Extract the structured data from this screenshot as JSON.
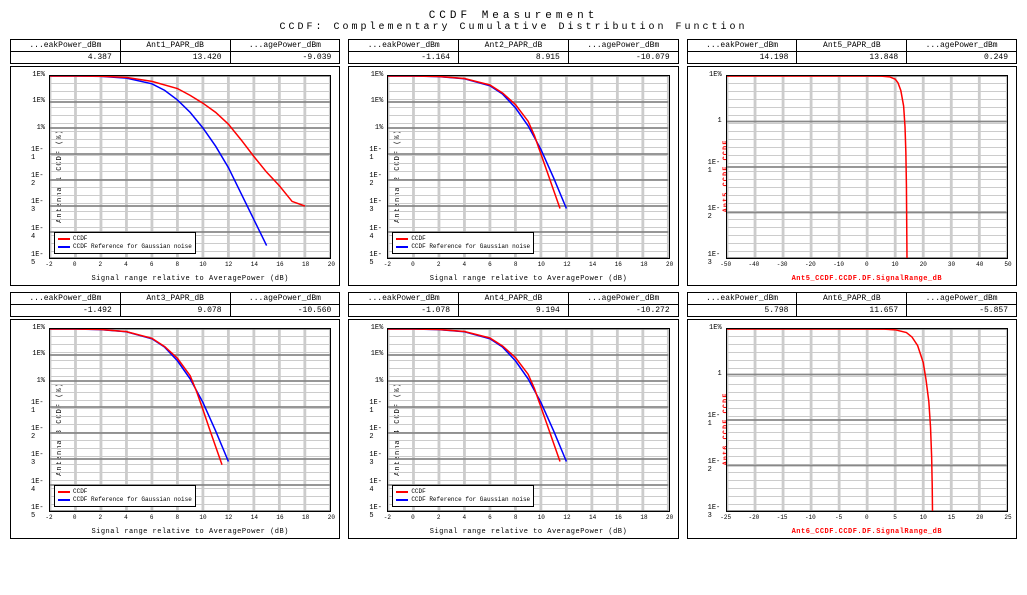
{
  "title1": "CCDF Measurement",
  "title2": "CCDF: Complementary Cumulative Distribution Function",
  "header_labels": [
    "...eakPower_dBm",
    "PAPR_dB",
    "...agePower_dBm"
  ],
  "ylim": [
    1e-05,
    100
  ],
  "ytick_labels": [
    "1E%",
    "1E%",
    "1%",
    "1E-1",
    "1E-2",
    "1E-3",
    "1E-4",
    "1E-5"
  ],
  "ytick_labels_short": [
    "1E%",
    "1",
    "1E-1",
    "1E-2",
    "1E-3"
  ],
  "xlim_std": [
    -2,
    20
  ],
  "xticks_std": [
    -2,
    0,
    2,
    4,
    6,
    8,
    10,
    12,
    14,
    16,
    18,
    20
  ],
  "xlim_red": [
    -50,
    50
  ],
  "xticks_red": [
    -50,
    -40,
    -30,
    -20,
    -10,
    0,
    10,
    20,
    30,
    40,
    50
  ],
  "xlim_red2": [
    -25,
    25
  ],
  "xticks_red2": [
    -25,
    -20,
    -15,
    -10,
    -5,
    0,
    5,
    10,
    15,
    20,
    25
  ],
  "colors": {
    "ccdf": "#ff0000",
    "gauss": "#0000ff",
    "grid": "#cccccc",
    "border": "#000000",
    "bg": "#ffffff"
  },
  "legend": {
    "ccdf": "CCDF",
    "gauss": "CCDF Reference for Gaussian noise"
  },
  "panels": [
    {
      "id": "ant1",
      "papr_label": "Ant1_PAPR_dB",
      "vals": [
        "4.387",
        "13.420",
        "-9.039"
      ],
      "ylabel": "Antenna 1 CCDF (%)",
      "xlabel": "Signal range relative to AveragePower (dB)",
      "style": "std",
      "has_ref": true,
      "ccdf": [
        [
          -2,
          100
        ],
        [
          0,
          100
        ],
        [
          2,
          98
        ],
        [
          4,
          88
        ],
        [
          6,
          62
        ],
        [
          8,
          33
        ],
        [
          9,
          18
        ],
        [
          10,
          9
        ],
        [
          11,
          4
        ],
        [
          12,
          1.4
        ],
        [
          13,
          0.35
        ],
        [
          14,
          0.08
        ],
        [
          15,
          0.02
        ],
        [
          16,
          0.006
        ],
        [
          17,
          0.0015
        ],
        [
          18,
          0.001
        ]
      ],
      "gauss": [
        [
          -2,
          100
        ],
        [
          0,
          100
        ],
        [
          2,
          97
        ],
        [
          4,
          83
        ],
        [
          6,
          50
        ],
        [
          7,
          28
        ],
        [
          8,
          12
        ],
        [
          9,
          4
        ],
        [
          10,
          1
        ],
        [
          11,
          0.2
        ],
        [
          12,
          0.03
        ],
        [
          13,
          0.003
        ],
        [
          14,
          0.0003
        ],
        [
          15,
          3e-05
        ]
      ]
    },
    {
      "id": "ant2",
      "papr_label": "Ant2_PAPR_dB",
      "vals": [
        "-1.164",
        "8.915",
        "-10.079"
      ],
      "ylabel": "Antenna 2 CCDF (%)",
      "xlabel": "Signal range relative to AveragePower (dB)",
      "style": "std",
      "has_ref": true,
      "ccdf": [
        [
          -2,
          100
        ],
        [
          0,
          100
        ],
        [
          2,
          96
        ],
        [
          4,
          80
        ],
        [
          6,
          45
        ],
        [
          7,
          22
        ],
        [
          8,
          8
        ],
        [
          9,
          1.8
        ],
        [
          9.5,
          0.5
        ],
        [
          10,
          0.1
        ],
        [
          10.5,
          0.02
        ],
        [
          11,
          0.004
        ],
        [
          11.5,
          0.0008
        ]
      ],
      "gauss": [
        [
          -2,
          100
        ],
        [
          0,
          100
        ],
        [
          2,
          95
        ],
        [
          4,
          78
        ],
        [
          6,
          42
        ],
        [
          7,
          20
        ],
        [
          8,
          6
        ],
        [
          9,
          1.2
        ],
        [
          10,
          0.15
        ],
        [
          11,
          0.012
        ],
        [
          12,
          0.0008
        ]
      ]
    },
    {
      "id": "ant5",
      "papr_label": "Ant5_PAPR_dB",
      "vals": [
        "14.198",
        "13.848",
        "0.249"
      ],
      "ylabel": "Ant5_CCDF.CCDF",
      "xlabel": "Ant5_CCDF.CCDF.DF.SignalRange_dB",
      "style": "red",
      "has_ref": false,
      "ccdf": [
        [
          -50,
          100
        ],
        [
          -30,
          100
        ],
        [
          -10,
          100
        ],
        [
          0,
          100
        ],
        [
          5,
          99
        ],
        [
          8,
          95
        ],
        [
          10,
          82
        ],
        [
          11,
          65
        ],
        [
          12,
          40
        ],
        [
          13,
          15
        ],
        [
          13.5,
          4
        ],
        [
          13.8,
          0.8
        ],
        [
          14,
          0.1
        ],
        [
          14.1,
          0.01
        ],
        [
          14.2,
          0.001
        ]
      ]
    },
    {
      "id": "ant3",
      "papr_label": "Ant3_PAPR_dB",
      "vals": [
        "-1.492",
        "9.078",
        "-10.560"
      ],
      "ylabel": "Antenna 3 CCDF (%)",
      "xlabel": "Signal range relative to AveragePower (dB)",
      "style": "std",
      "has_ref": true,
      "ccdf": [
        [
          -2,
          100
        ],
        [
          0,
          100
        ],
        [
          2,
          96
        ],
        [
          4,
          79
        ],
        [
          6,
          44
        ],
        [
          7,
          21
        ],
        [
          8,
          7.5
        ],
        [
          9,
          1.6
        ],
        [
          9.5,
          0.4
        ],
        [
          10,
          0.08
        ],
        [
          10.5,
          0.015
        ],
        [
          11,
          0.003
        ],
        [
          11.5,
          0.0006
        ]
      ],
      "gauss": [
        [
          -2,
          100
        ],
        [
          0,
          100
        ],
        [
          2,
          95
        ],
        [
          4,
          78
        ],
        [
          6,
          42
        ],
        [
          7,
          20
        ],
        [
          8,
          6
        ],
        [
          9,
          1.2
        ],
        [
          10,
          0.15
        ],
        [
          11,
          0.012
        ],
        [
          12,
          0.0008
        ]
      ]
    },
    {
      "id": "ant4",
      "papr_label": "Ant4_PAPR_dB",
      "vals": [
        "-1.078",
        "9.194",
        "-10.272"
      ],
      "ylabel": "Antenna 4 CCDF (%)",
      "xlabel": "Signal range relative to AveragePower (dB)",
      "style": "std",
      "has_ref": true,
      "ccdf": [
        [
          -2,
          100
        ],
        [
          0,
          100
        ],
        [
          2,
          96
        ],
        [
          4,
          80
        ],
        [
          6,
          45
        ],
        [
          7,
          22
        ],
        [
          8,
          8
        ],
        [
          9,
          1.8
        ],
        [
          9.5,
          0.5
        ],
        [
          10,
          0.1
        ],
        [
          10.5,
          0.02
        ],
        [
          11,
          0.004
        ],
        [
          11.5,
          0.0008
        ]
      ],
      "gauss": [
        [
          -2,
          100
        ],
        [
          0,
          100
        ],
        [
          2,
          95
        ],
        [
          4,
          78
        ],
        [
          6,
          42
        ],
        [
          7,
          20
        ],
        [
          8,
          6
        ],
        [
          9,
          1.2
        ],
        [
          10,
          0.15
        ],
        [
          11,
          0.012
        ],
        [
          12,
          0.0008
        ]
      ]
    },
    {
      "id": "ant6",
      "papr_label": "Ant6_PAPR_dB",
      "vals": [
        "5.798",
        "11.657",
        "-5.857"
      ],
      "ylabel": "Ant6_CCDF.CCDF",
      "xlabel": "Ant6_CCDF.CCDF.DF.SignalRange_dB",
      "style": "red2",
      "has_ref": false,
      "ccdf": [
        [
          -25,
          100
        ],
        [
          -10,
          100
        ],
        [
          0,
          100
        ],
        [
          3,
          99
        ],
        [
          5,
          95
        ],
        [
          7,
          80
        ],
        [
          8,
          60
        ],
        [
          9,
          35
        ],
        [
          10,
          12
        ],
        [
          10.5,
          4
        ],
        [
          11,
          1
        ],
        [
          11.3,
          0.2
        ],
        [
          11.5,
          0.03
        ],
        [
          11.6,
          0.005
        ],
        [
          11.65,
          0.001
        ]
      ]
    }
  ]
}
